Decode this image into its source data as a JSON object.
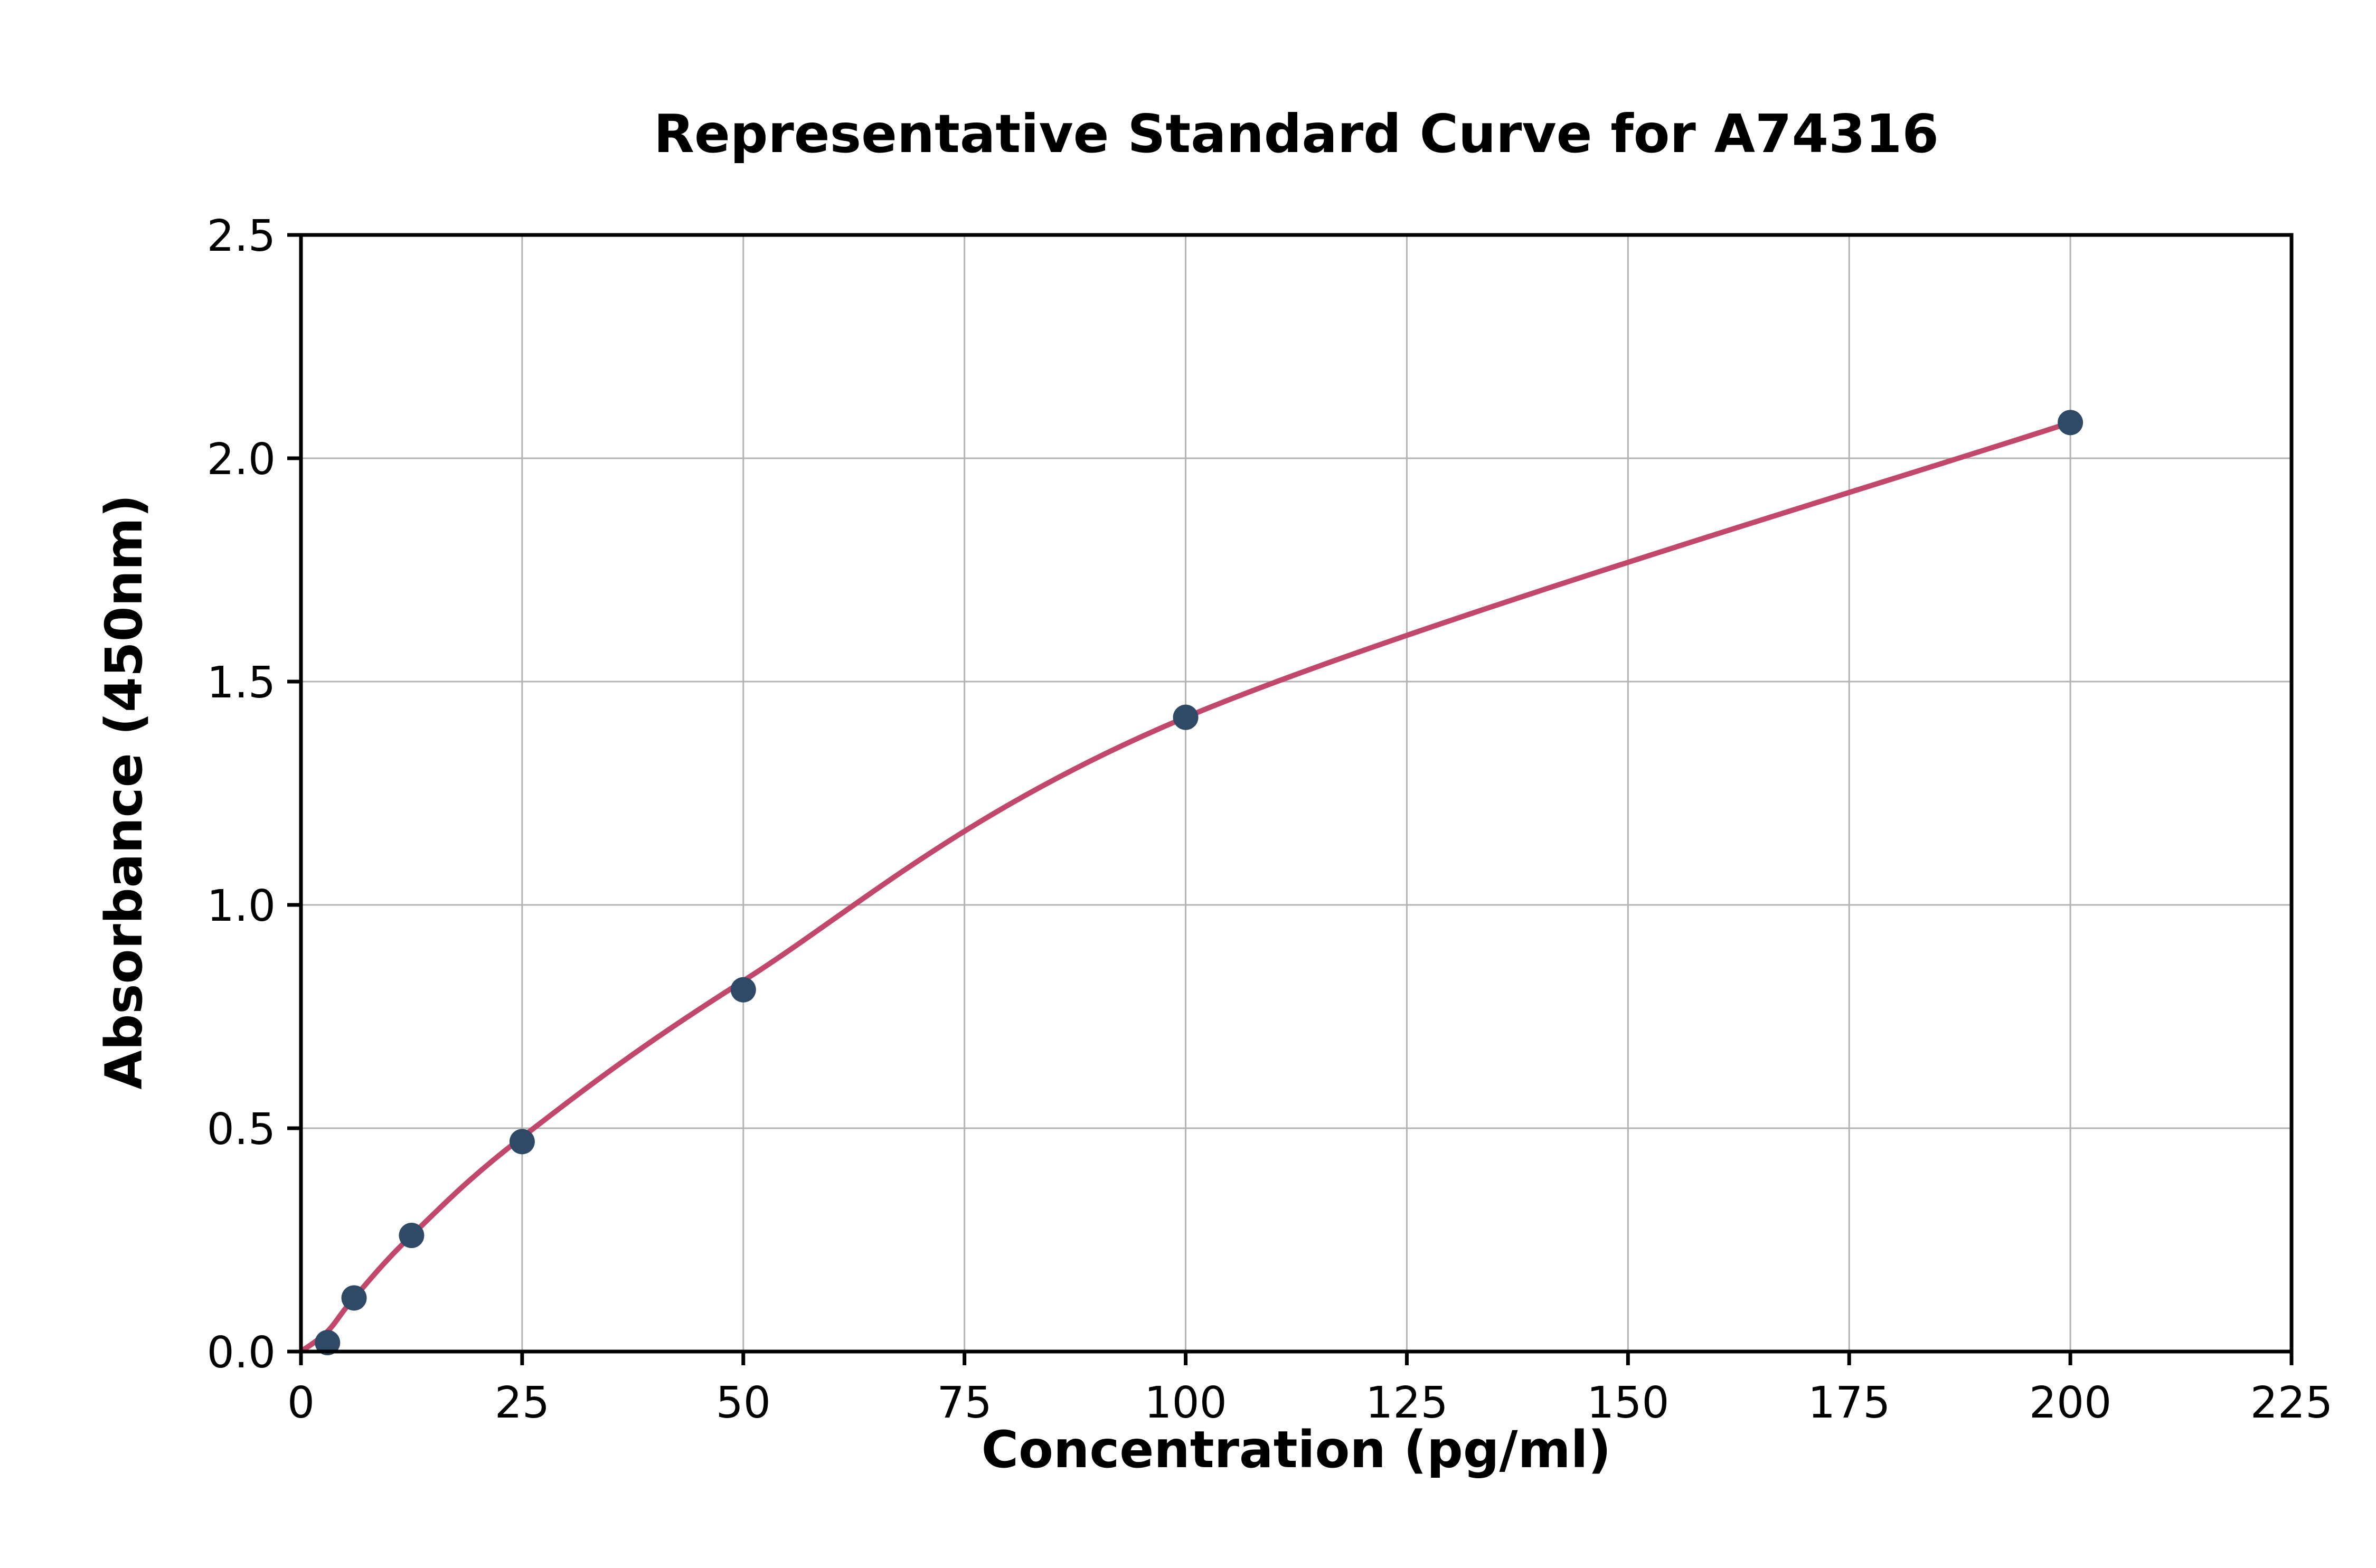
{
  "chart_data": {
    "type": "scatter",
    "title": "Representative Standard Curve for A74316",
    "xlabel": "Concentration (pg/ml)",
    "ylabel": "Absorbance (450nm)",
    "xlim": [
      0,
      225
    ],
    "ylim": [
      0.0,
      2.5
    ],
    "xticks": [
      0,
      25,
      50,
      75,
      100,
      125,
      150,
      175,
      200,
      225
    ],
    "xtick_labels": [
      "0",
      "25",
      "50",
      "75",
      "100",
      "125",
      "150",
      "175",
      "200",
      "225"
    ],
    "yticks": [
      0.0,
      0.5,
      1.0,
      1.5,
      2.0,
      2.5
    ],
    "ytick_labels": [
      "0.0",
      "0.5",
      "1.0",
      "1.5",
      "2.0",
      "2.5"
    ],
    "grid": true,
    "legend": false,
    "colors": {
      "marker": "#2e4a66",
      "curve": "#c2486b",
      "grid": "#b3b3b3",
      "axis": "#000000",
      "background": "#ffffff"
    },
    "series": [
      {
        "name": "standard-points",
        "type": "scatter",
        "x": [
          3,
          6,
          12.5,
          25,
          50,
          100,
          200
        ],
        "y": [
          0.02,
          0.12,
          0.26,
          0.47,
          0.81,
          1.42,
          2.08
        ]
      },
      {
        "name": "fitted-curve",
        "type": "line",
        "x": [
          0,
          3,
          6,
          12.5,
          25,
          50,
          100,
          200
        ],
        "y": [
          0.0,
          0.045,
          0.12,
          0.26,
          0.48,
          0.83,
          1.42,
          2.08
        ]
      }
    ]
  }
}
